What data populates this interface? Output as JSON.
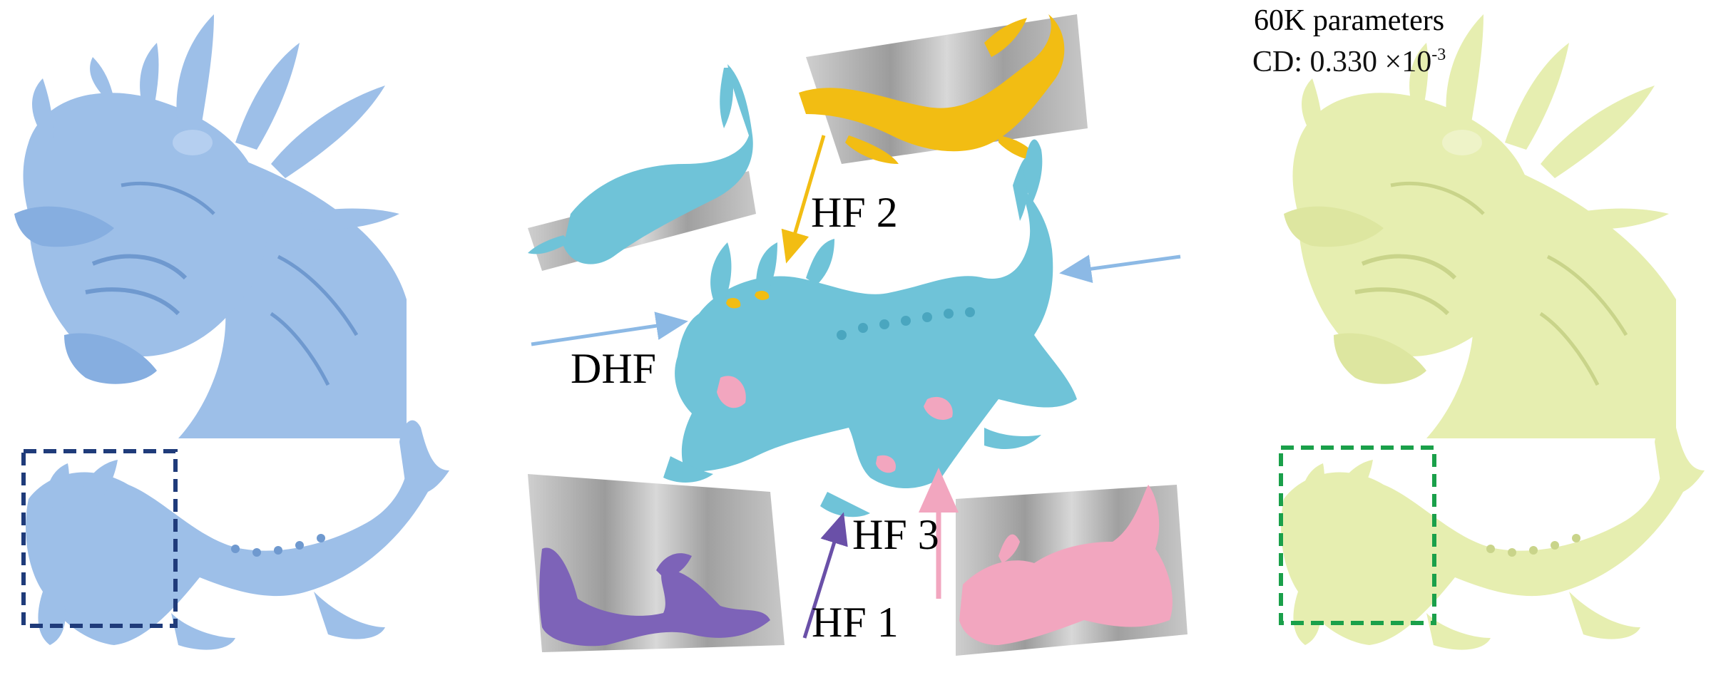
{
  "figure": {
    "labels": {
      "hf2": "HF 2",
      "hf3": "HF 3",
      "hf1": "HF 1",
      "dhf": "DHF"
    },
    "result_metrics": {
      "params": "60K parameters",
      "cd_prefix": "CD: 0.330 ×10",
      "cd_exponent": "-3"
    },
    "colors": {
      "input_mesh": "#9dbfe8",
      "input_mesh_dark": "#6f99cf",
      "result_mesh": "#e6eeb0",
      "result_mesh_dark": "#c9d48a",
      "dhf_mesh": "#6fc3d8",
      "hf1": "#7d63b8",
      "hf2": "#f2bd13",
      "hf3": "#f2a6bf",
      "gray_wall": "#a9a9a9",
      "input_box": "#1f3b7a",
      "result_box": "#1aa04a",
      "arrow_blue": "#8cb9e5"
    }
  }
}
